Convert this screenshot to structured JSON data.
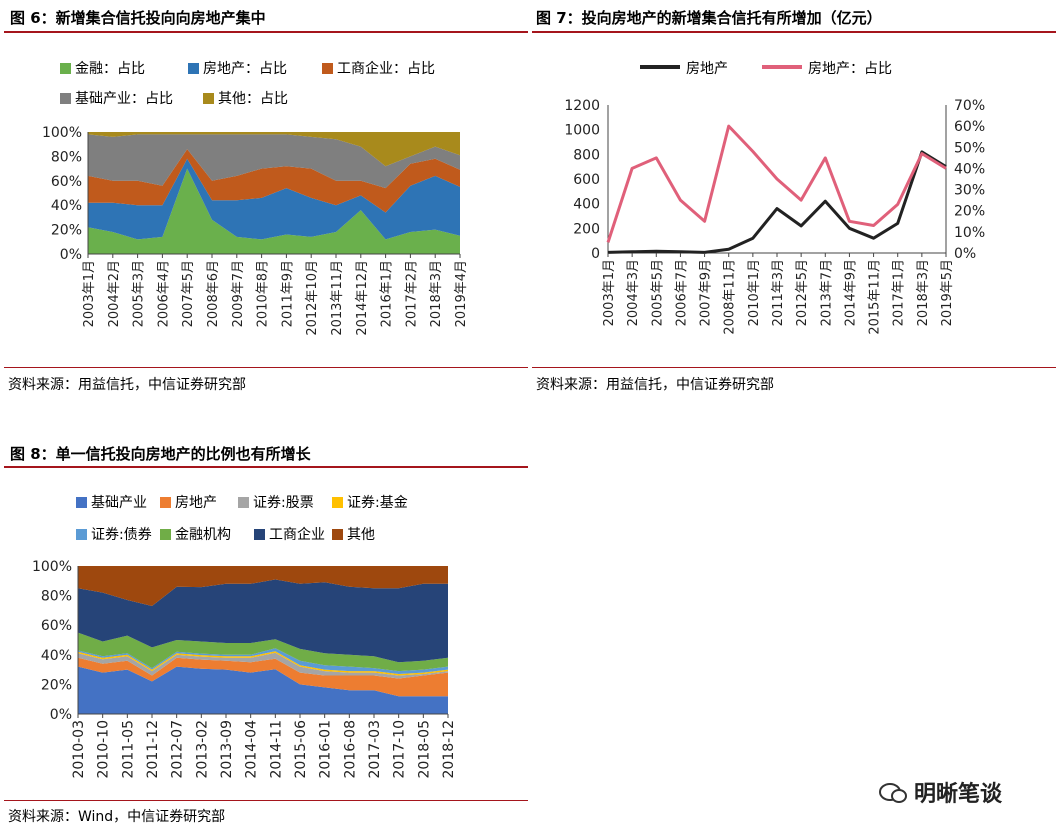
{
  "charts": [
    {
      "id": "fig6",
      "title": "图 6：新增集合信托投向向房地产集中",
      "source": "资料来源：用益信托，中信证券研究部",
      "legend": [
        {
          "name": "金融：占比",
          "color": "#6ab04c"
        },
        {
          "name": "房地产：占比",
          "color": "#2e74b5"
        },
        {
          "name": "工商企业：占比",
          "color": "#c05a1c"
        },
        {
          "name": "基础产业：占比",
          "color": "#7f7f7f"
        },
        {
          "name": "其他：占比",
          "color": "#a88a1c"
        }
      ]
    },
    {
      "id": "fig7",
      "title": "图 7：投向房地产的新增集合信托有所增加（亿元）",
      "source": "资料来源：用益信托，中信证券研究部",
      "legend": [
        {
          "name": "房地产",
          "color": "#222222"
        },
        {
          "name": "房地产：占比",
          "color": "#e0607a"
        }
      ]
    },
    {
      "id": "fig8",
      "title": "图 8：单一信托投向房地产的比例也有所增长",
      "source": "资料来源：Wind，中信证券研究部",
      "legend": [
        {
          "name": "基础产业",
          "color": "#4472c4"
        },
        {
          "name": "房地产",
          "color": "#ed7d31"
        },
        {
          "name": "证券:股票",
          "color": "#a5a5a5"
        },
        {
          "name": "证券:基金",
          "color": "#ffc000"
        },
        {
          "name": "证券:债券",
          "color": "#5b9bd5"
        },
        {
          "name": "金融机构",
          "color": "#70ad47"
        },
        {
          "name": "工商企业",
          "color": "#264478"
        },
        {
          "name": "其他",
          "color": "#9e480e"
        }
      ]
    }
  ],
  "chart_data": [
    {
      "type": "area",
      "stacked": true,
      "percent": true,
      "x": [
        "2003年1月",
        "2004年2月",
        "2005年3月",
        "2006年4月",
        "2007年5月",
        "2008年6月",
        "2009年7月",
        "2010年8月",
        "2011年9月",
        "2012年10月",
        "2013年11月",
        "2014年12月",
        "2016年1月",
        "2017年2月",
        "2018年3月",
        "2019年4月"
      ],
      "yticks": [
        "0%",
        "20%",
        "40%",
        "60%",
        "80%",
        "100%"
      ],
      "ylim": [
        0,
        100
      ],
      "series": [
        {
          "name": "金融：占比",
          "color": "#6ab04c",
          "values": [
            22,
            18,
            12,
            14,
            70,
            28,
            14,
            12,
            16,
            14,
            18,
            36,
            12,
            18,
            20,
            15
          ]
        },
        {
          "name": "房地产：占比",
          "color": "#2e74b5",
          "values": [
            20,
            24,
            28,
            26,
            8,
            16,
            30,
            34,
            38,
            32,
            22,
            12,
            22,
            38,
            44,
            40
          ]
        },
        {
          "name": "工商企业：占比",
          "color": "#c05a1c",
          "values": [
            22,
            18,
            20,
            16,
            8,
            16,
            20,
            24,
            18,
            24,
            20,
            12,
            20,
            18,
            14,
            14
          ]
        },
        {
          "name": "基础产业：占比",
          "color": "#7f7f7f",
          "values": [
            34,
            36,
            38,
            42,
            12,
            38,
            34,
            28,
            26,
            26,
            34,
            28,
            18,
            6,
            10,
            12
          ]
        },
        {
          "name": "其他：占比",
          "color": "#a88a1c",
          "values": [
            2,
            4,
            2,
            2,
            2,
            2,
            2,
            2,
            2,
            4,
            6,
            12,
            28,
            20,
            12,
            19
          ]
        }
      ]
    },
    {
      "type": "line",
      "x": [
        "2003年1月",
        "2004年3月",
        "2005年5月",
        "2006年7月",
        "2007年9月",
        "2008年11月",
        "2010年1月",
        "2011年3月",
        "2012年5月",
        "2013年7月",
        "2014年9月",
        "2015年11月",
        "2017年1月",
        "2018年3月",
        "2019年5月"
      ],
      "yticks_left": [
        "0",
        "200",
        "400",
        "600",
        "800",
        "1000",
        "1200"
      ],
      "ylim_left": [
        0,
        1200
      ],
      "yticks_right": [
        "0%",
        "10%",
        "20%",
        "30%",
        "40%",
        "50%",
        "60%",
        "70%"
      ],
      "ylim_right": [
        0,
        70
      ],
      "series": [
        {
          "name": "房地产",
          "axis": "left",
          "color": "#222222",
          "values": [
            5,
            10,
            15,
            10,
            5,
            30,
            120,
            360,
            220,
            420,
            200,
            120,
            240,
            820,
            700
          ]
        },
        {
          "name": "房地产：占比",
          "axis": "right",
          "color": "#e0607a",
          "values": [
            5,
            40,
            45,
            25,
            15,
            60,
            48,
            35,
            25,
            45,
            15,
            13,
            23,
            47,
            40
          ]
        }
      ]
    },
    {
      "type": "area",
      "stacked": true,
      "percent": true,
      "x": [
        "2010-03",
        "2010-10",
        "2011-05",
        "2011-12",
        "2012-07",
        "2013-02",
        "2013-09",
        "2014-04",
        "2014-11",
        "2015-06",
        "2016-01",
        "2016-08",
        "2017-03",
        "2017-10",
        "2018-05",
        "2018-12"
      ],
      "yticks": [
        "0%",
        "20%",
        "40%",
        "60%",
        "80%",
        "100%"
      ],
      "ylim": [
        0,
        100
      ],
      "series": [
        {
          "name": "基础产业",
          "color": "#4472c4",
          "values": [
            32,
            28,
            30,
            22,
            32,
            30,
            30,
            28,
            30,
            20,
            18,
            16,
            16,
            12,
            12,
            12
          ]
        },
        {
          "name": "房地产",
          "color": "#ed7d31",
          "values": [
            6,
            6,
            6,
            4,
            6,
            6,
            6,
            7,
            7,
            8,
            8,
            10,
            10,
            12,
            14,
            16
          ]
        },
        {
          "name": "证券:股票",
          "color": "#a5a5a5",
          "values": [
            3,
            3,
            3,
            3,
            2,
            2,
            2,
            3,
            4,
            4,
            3,
            2,
            2,
            2,
            1,
            1
          ]
        },
        {
          "name": "证券:基金",
          "color": "#ffc000",
          "values": [
            1,
            1,
            1,
            1,
            1,
            1,
            1,
            1,
            1,
            1,
            1,
            1,
            1,
            1,
            1,
            1
          ]
        },
        {
          "name": "证券:债券",
          "color": "#5b9bd5",
          "values": [
            1,
            1,
            1,
            1,
            1,
            1,
            1,
            1,
            2,
            3,
            3,
            3,
            2,
            2,
            2,
            2
          ]
        },
        {
          "name": "金融机构",
          "color": "#70ad47",
          "values": [
            12,
            10,
            12,
            14,
            8,
            8,
            8,
            8,
            6,
            8,
            8,
            8,
            8,
            6,
            6,
            6
          ]
        },
        {
          "name": "工商企业",
          "color": "#264478",
          "values": [
            30,
            33,
            24,
            28,
            36,
            36,
            40,
            40,
            40,
            44,
            48,
            46,
            46,
            50,
            52,
            50
          ]
        },
        {
          "name": "其他",
          "color": "#9e480e",
          "values": [
            15,
            18,
            23,
            27,
            14,
            14,
            12,
            12,
            9,
            12,
            11,
            14,
            15,
            15,
            12,
            12
          ]
        }
      ]
    }
  ],
  "watermark": "明晰笔谈"
}
